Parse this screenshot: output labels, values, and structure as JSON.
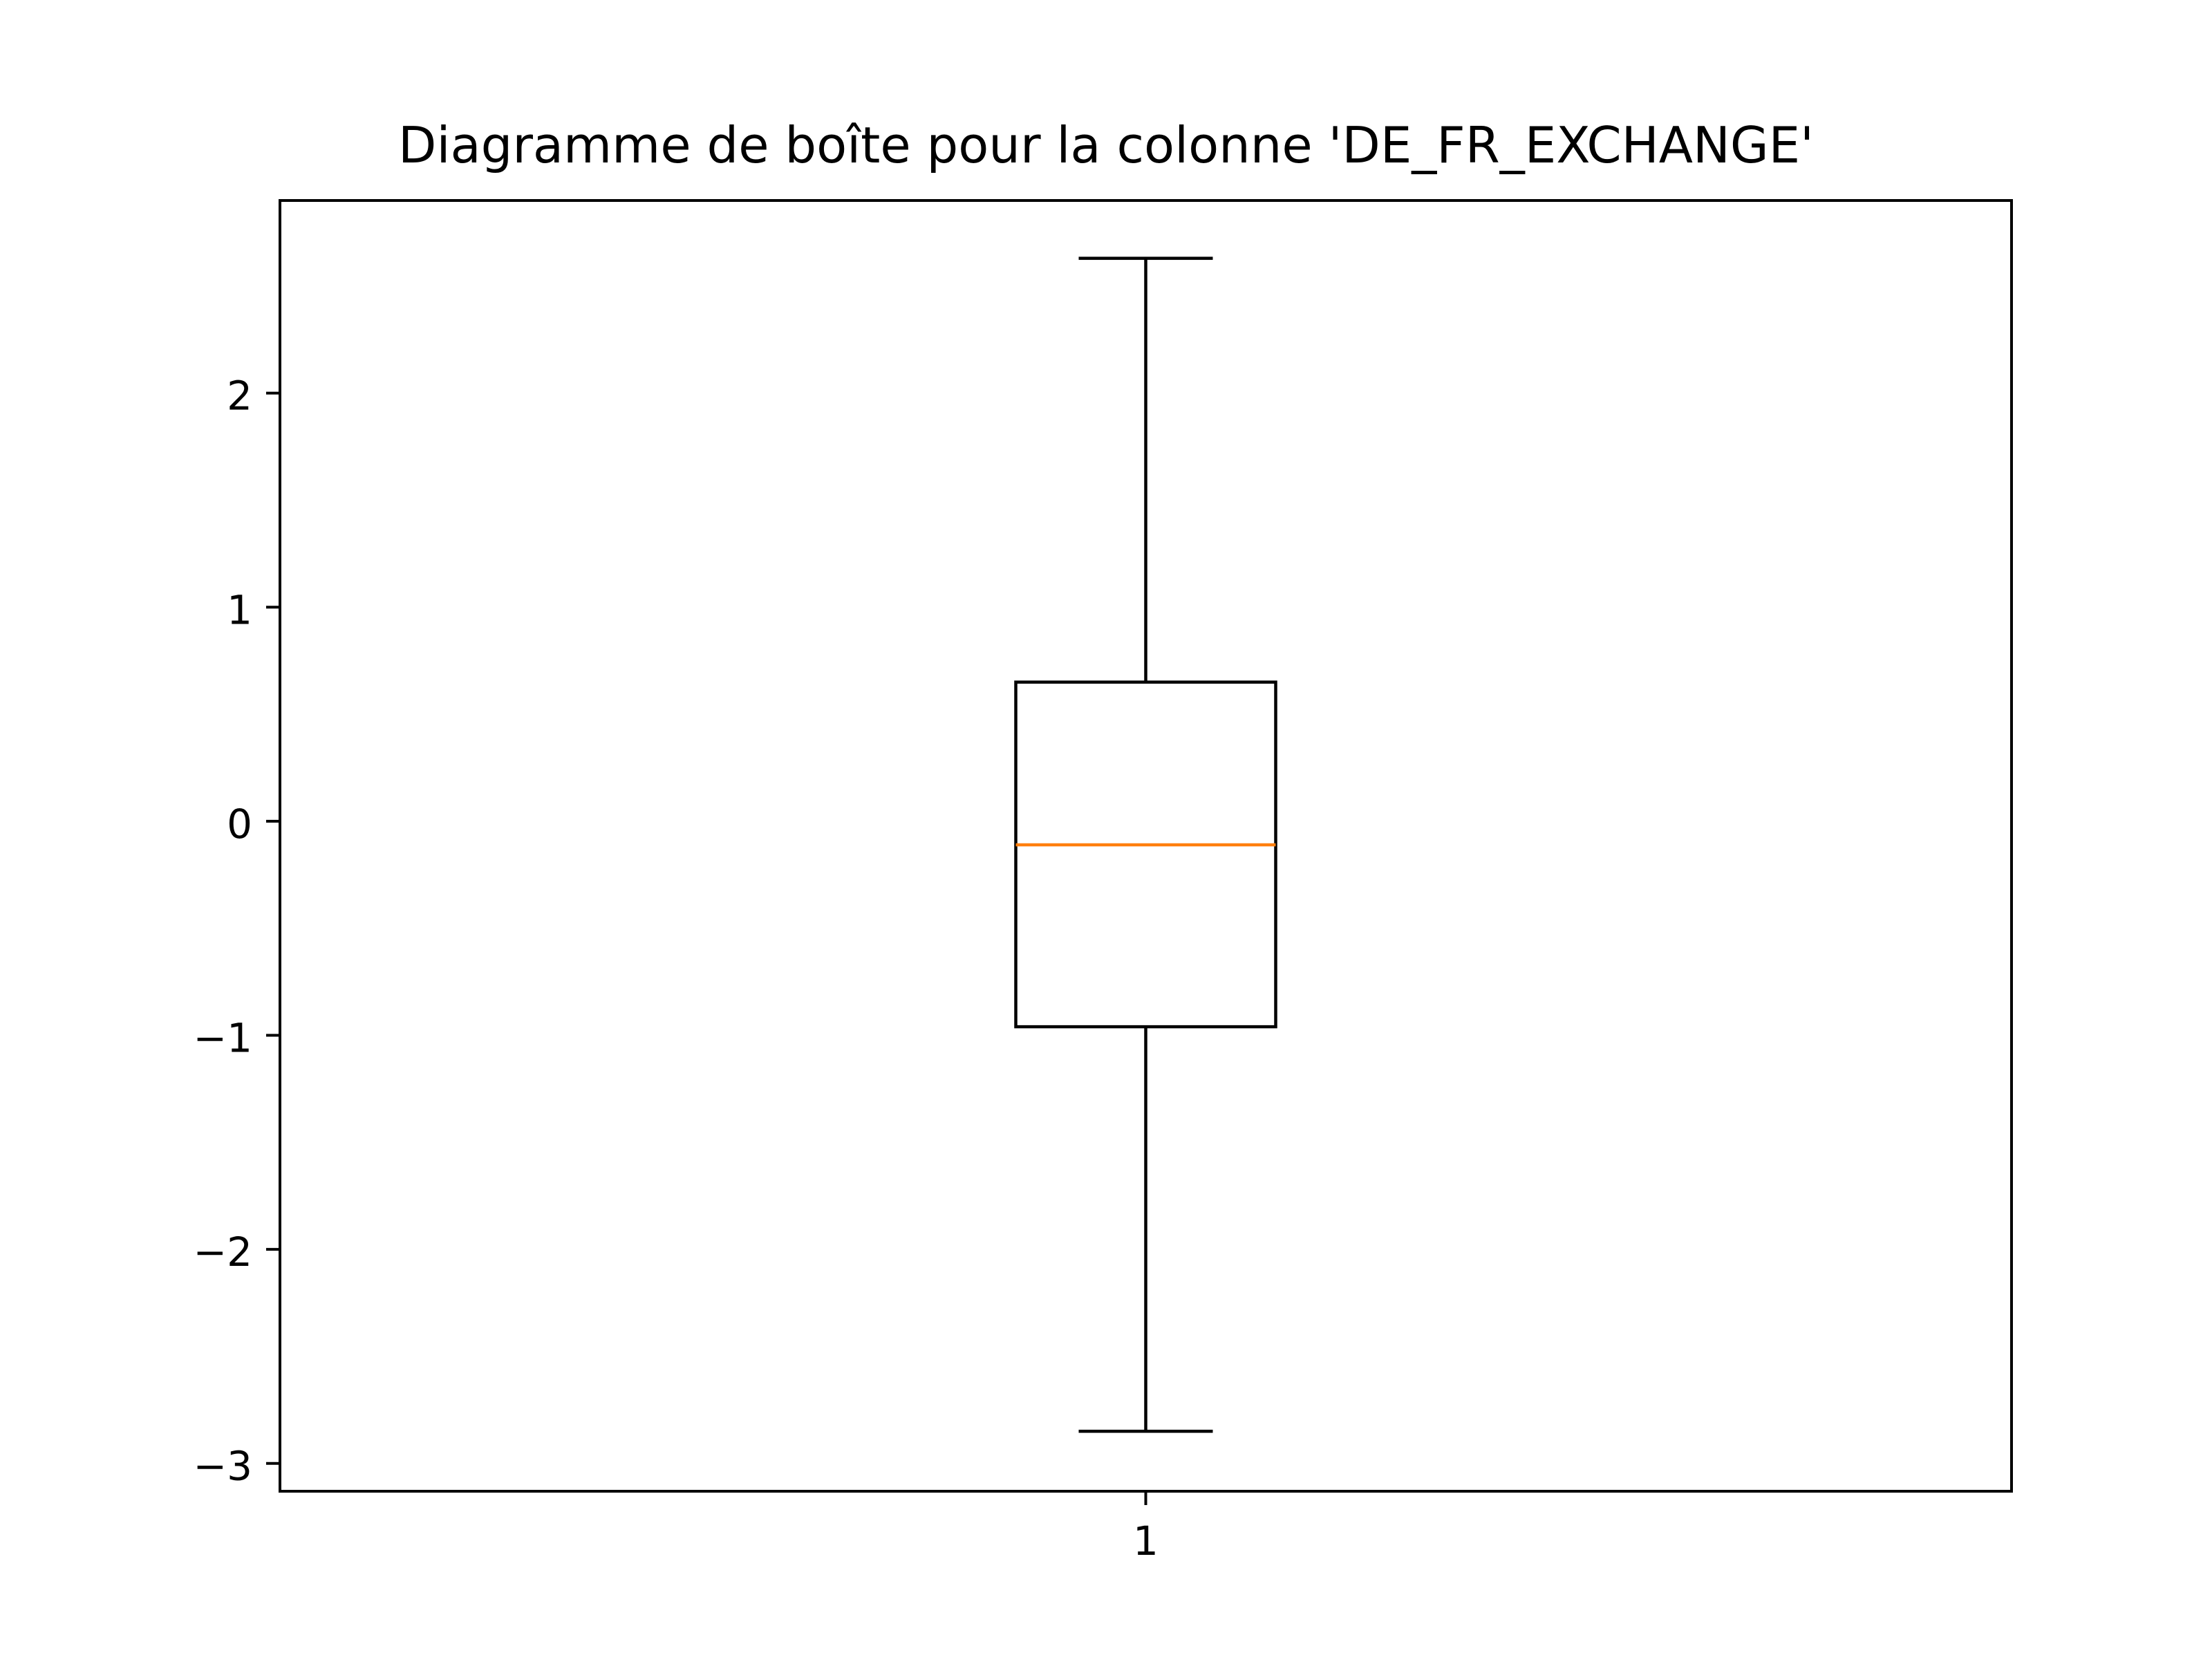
{
  "chart_data": {
    "type": "box",
    "title": "Diagramme de boîte pour la colonne 'DE_FR_EXCHANGE'",
    "xlabel": "",
    "ylabel": "",
    "categories": [
      "1"
    ],
    "boxes": [
      {
        "category": "1",
        "whisker_low": -2.85,
        "q1": -0.96,
        "median": -0.11,
        "q3": 0.65,
        "whisker_high": 2.63
      }
    ],
    "ylim": [
      -3.13,
      2.9
    ],
    "yticks": [
      -3,
      -2,
      -1,
      0,
      1,
      2
    ],
    "ytick_labels": [
      "−3",
      "−2",
      "−1",
      "0",
      "1",
      "2"
    ],
    "grid": false,
    "legend": "none",
    "colors": {
      "box": "#000000",
      "median": "#ff7f0e",
      "axes": "#000000"
    }
  }
}
